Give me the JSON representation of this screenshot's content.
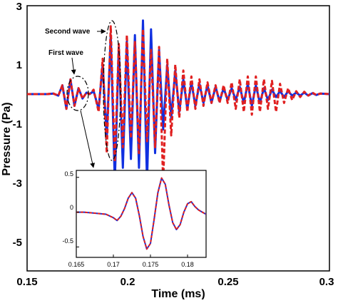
{
  "chart_data": [
    {
      "type": "line",
      "title": "",
      "xlabel": "Time (ms)",
      "ylabel": "Pressure (Pa)",
      "xlim": [
        0.15,
        0.3
      ],
      "ylim": [
        -6,
        3
      ],
      "xticks": [
        0.15,
        0.2,
        0.25,
        0.3
      ],
      "xtick_labels": [
        "0.15",
        "0.2",
        "0.25",
        "0.3"
      ],
      "yticks": [
        3,
        1,
        -1,
        -3,
        -5
      ],
      "ytick_labels": [
        "3",
        "1",
        "-1",
        "-3",
        "-5"
      ],
      "grid": false,
      "annotations": [
        "Second wave",
        "First wave"
      ],
      "series": [
        {
          "color": "#1030e0",
          "style": "solid",
          "x": [
            0.15,
            0.16,
            0.163,
            0.1655,
            0.1675,
            0.1695,
            0.1715,
            0.1735,
            0.1755,
            0.1775,
            0.1795,
            0.181,
            0.183,
            0.1855,
            0.1875,
            0.1895,
            0.1915,
            0.1935,
            0.1955,
            0.1975,
            0.1995,
            0.2015,
            0.2035,
            0.2055,
            0.2075,
            0.2095,
            0.2115,
            0.2135,
            0.2155,
            0.2175,
            0.2195,
            0.2215,
            0.2235,
            0.2255,
            0.2275,
            0.2295,
            0.2315,
            0.2335,
            0.2355,
            0.2375,
            0.2395,
            0.2415,
            0.2435,
            0.2455,
            0.2475,
            0.2495,
            0.2515,
            0.2535,
            0.2555,
            0.2575,
            0.2595,
            0.2615,
            0.2635,
            0.2655,
            0.2675,
            0.2695,
            0.2715,
            0.2735,
            0.2755,
            0.2775,
            0.2795,
            0.2815,
            0.2835,
            0.2855,
            0.2875,
            0.2895,
            0.2915,
            0.2935,
            0.2955,
            0.3
          ],
          "y": [
            0.0,
            0.0,
            0.02,
            -0.05,
            0.3,
            -0.5,
            0.5,
            -0.4,
            0.2,
            -0.15,
            0.05,
            0.0,
            0.1,
            -0.5,
            1.0,
            -1.5,
            2.0,
            -3.0,
            1.6,
            -2.5,
            1.8,
            -2.2,
            2.0,
            -2.5,
            2.5,
            -3.0,
            2.2,
            -2.0,
            1.5,
            -1.2,
            1.0,
            -0.8,
            0.8,
            -0.6,
            0.5,
            -0.5,
            0.4,
            -0.4,
            0.35,
            -0.3,
            0.3,
            -0.3,
            0.25,
            -0.25,
            0.2,
            -0.2,
            0.2,
            -0.2,
            0.25,
            -0.3,
            0.35,
            -0.4,
            0.3,
            -0.3,
            0.2,
            -0.2,
            0.15,
            -0.1,
            0.1,
            -0.1,
            0.1,
            -0.05,
            0.05,
            -0.05,
            0.05,
            -0.05,
            0.03,
            -0.03,
            0.02,
            0.0
          ]
        },
        {
          "color": "#e02020",
          "style": "dashed",
          "x": [
            0.15,
            0.16,
            0.163,
            0.1655,
            0.1675,
            0.1695,
            0.1715,
            0.1735,
            0.1755,
            0.1775,
            0.1795,
            0.181,
            0.183,
            0.1855,
            0.1875,
            0.1895,
            0.1915,
            0.1935,
            0.1955,
            0.1975,
            0.1995,
            0.2015,
            0.2035,
            0.2055,
            0.2075,
            0.2095,
            0.2115,
            0.2135,
            0.2155,
            0.2175,
            0.2195,
            0.2215,
            0.2235,
            0.2255,
            0.2275,
            0.2295,
            0.2315,
            0.2335,
            0.2355,
            0.2375,
            0.2395,
            0.2415,
            0.2435,
            0.2455,
            0.2475,
            0.2495,
            0.2515,
            0.2535,
            0.2555,
            0.2575,
            0.2595,
            0.2615,
            0.2635,
            0.2655,
            0.2675,
            0.2695,
            0.2715,
            0.2735,
            0.2755,
            0.2775,
            0.2795,
            0.2815,
            0.2835,
            0.2855,
            0.2875,
            0.2895,
            0.2915,
            0.2935,
            0.2955,
            0.3
          ],
          "y": [
            0.0,
            0.0,
            0.02,
            -0.05,
            0.3,
            -0.5,
            0.5,
            -0.4,
            0.2,
            -0.15,
            0.05,
            0.0,
            0.15,
            -0.6,
            1.2,
            -2.0,
            2.3,
            -2.3,
            1.7,
            -1.8,
            2.0,
            -1.5,
            1.8,
            -2.0,
            2.2,
            -1.6,
            1.5,
            -1.8,
            1.6,
            -3.0,
            1.2,
            -1.4,
            1.0,
            -0.8,
            0.8,
            -0.6,
            0.6,
            -0.5,
            0.5,
            -0.4,
            0.4,
            -0.3,
            0.3,
            -0.3,
            0.3,
            -0.3,
            0.4,
            -0.5,
            0.5,
            -0.6,
            0.6,
            -0.7,
            0.6,
            -0.6,
            0.5,
            -0.5,
            0.45,
            -0.6,
            0.35,
            -0.3,
            0.2,
            -0.2,
            0.1,
            -0.1,
            0.08,
            -0.05,
            0.05,
            -0.03,
            0.02,
            0.0
          ]
        }
      ]
    },
    {
      "type": "line",
      "title": "",
      "xlim": [
        0.165,
        0.1825
      ],
      "ylim": [
        -0.65,
        0.6
      ],
      "xticks": [
        0.165,
        0.17,
        0.175,
        0.18
      ],
      "xtick_labels": [
        "0.165",
        "0.17",
        "0.175",
        "0.18"
      ],
      "yticks": [
        0.5,
        0,
        -0.5
      ],
      "ytick_labels": [
        "0.5",
        "0",
        "-0.5"
      ],
      "grid": false,
      "series": [
        {
          "color": "#1030e0",
          "style": "solid",
          "x": [
            0.165,
            0.166,
            0.167,
            0.168,
            0.169,
            0.17,
            0.1705,
            0.171,
            0.1715,
            0.172,
            0.1725,
            0.173,
            0.1735,
            0.174,
            0.1745,
            0.175,
            0.1755,
            0.176,
            0.1765,
            0.177,
            0.1775,
            0.178,
            0.1785,
            0.179,
            0.1795,
            0.18,
            0.1805,
            0.181,
            0.1815,
            0.182,
            0.1825
          ],
          "y": [
            0.0,
            0.0,
            -0.01,
            -0.02,
            -0.03,
            -0.08,
            -0.12,
            -0.06,
            0.05,
            0.2,
            0.28,
            0.2,
            -0.05,
            -0.35,
            -0.53,
            -0.45,
            -0.1,
            0.28,
            0.49,
            0.4,
            0.1,
            -0.15,
            -0.25,
            -0.18,
            0.0,
            0.12,
            0.15,
            0.08,
            0.03,
            0.0,
            -0.03
          ]
        },
        {
          "color": "#e02020",
          "style": "dashed",
          "x": [
            0.165,
            0.166,
            0.167,
            0.168,
            0.169,
            0.17,
            0.1705,
            0.171,
            0.1715,
            0.172,
            0.1725,
            0.173,
            0.1735,
            0.174,
            0.1745,
            0.175,
            0.1755,
            0.176,
            0.1765,
            0.177,
            0.1775,
            0.178,
            0.1785,
            0.179,
            0.1795,
            0.18,
            0.1805,
            0.181,
            0.1815,
            0.182,
            0.1825
          ],
          "y": [
            0.0,
            0.0,
            -0.01,
            -0.02,
            -0.03,
            -0.08,
            -0.12,
            -0.06,
            0.05,
            0.2,
            0.28,
            0.2,
            -0.05,
            -0.35,
            -0.53,
            -0.45,
            -0.1,
            0.28,
            0.49,
            0.4,
            0.1,
            -0.15,
            -0.25,
            -0.18,
            0.0,
            0.12,
            0.15,
            0.08,
            0.03,
            0.0,
            -0.03
          ]
        }
      ]
    }
  ]
}
